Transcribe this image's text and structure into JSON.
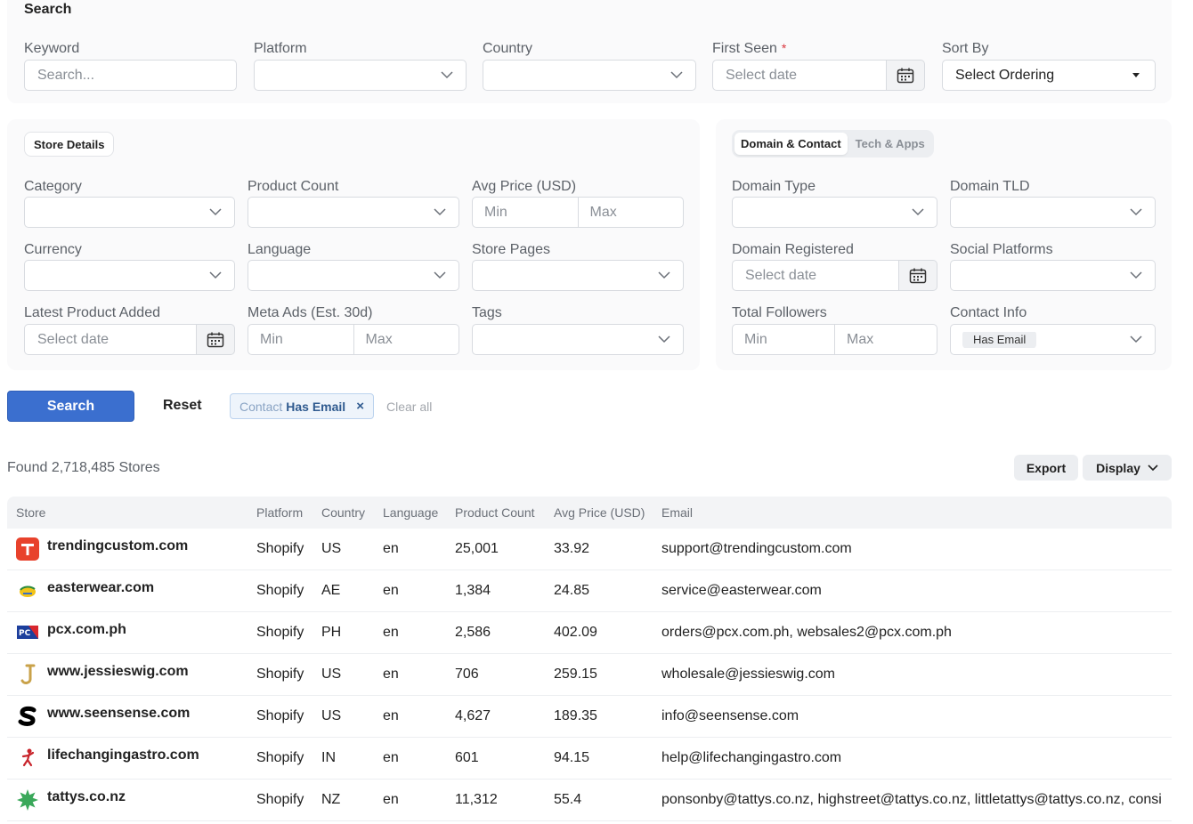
{
  "search_panel": {
    "title": "Search",
    "keyword": {
      "label": "Keyword",
      "placeholder": "Search..."
    },
    "platform": {
      "label": "Platform",
      "value": ""
    },
    "country": {
      "label": "Country",
      "value": ""
    },
    "first_seen": {
      "label": "First Seen",
      "required_mark": "*",
      "placeholder": "Select date"
    },
    "sort_by": {
      "label": "Sort By",
      "value": "Select Ordering"
    }
  },
  "store_details": {
    "tab_label": "Store Details",
    "category": {
      "label": "Category"
    },
    "product_count": {
      "label": "Product Count"
    },
    "avg_price": {
      "label": "Avg Price (USD)",
      "min": "Min",
      "max": "Max"
    },
    "currency": {
      "label": "Currency"
    },
    "language": {
      "label": "Language"
    },
    "store_pages": {
      "label": "Store Pages"
    },
    "latest_product_added": {
      "label": "Latest Product Added",
      "placeholder": "Select date"
    },
    "meta_ads": {
      "label": "Meta Ads (Est. 30d)",
      "min": "Min",
      "max": "Max"
    },
    "tags": {
      "label": "Tags"
    }
  },
  "domain_contact": {
    "tabs": [
      "Domain & Contact",
      "Tech & Apps"
    ],
    "domain_type": {
      "label": "Domain Type"
    },
    "domain_tld": {
      "label": "Domain TLD"
    },
    "domain_registered": {
      "label": "Domain Registered",
      "placeholder": "Select date"
    },
    "social_platforms": {
      "label": "Social Platforms"
    },
    "total_followers": {
      "label": "Total Followers",
      "min": "Min",
      "max": "Max"
    },
    "contact_info": {
      "label": "Contact Info",
      "selected": "Has Email"
    }
  },
  "actions": {
    "search_label": "Search",
    "reset_label": "Reset",
    "active_filter": {
      "key": "Contact",
      "value": "Has Email",
      "remove": "×"
    },
    "clear_all": "Clear all"
  },
  "results": {
    "found_text": "Found 2,718,485 Stores",
    "export_label": "Export",
    "display_label": "Display"
  },
  "table": {
    "columns": [
      "Store",
      "Platform",
      "Country",
      "Language",
      "Product Count",
      "Avg Price (USD)",
      "Email"
    ],
    "rows": [
      {
        "logo": "t-logo-icon",
        "store": "trendingcustom.com",
        "platform": "Shopify",
        "country": "US",
        "language": "en",
        "product_count": "25,001",
        "avg_price": "33.92",
        "email": "support@trendingcustom.com"
      },
      {
        "logo": "e-logo-icon",
        "store": "easterwear.com",
        "platform": "Shopify",
        "country": "AE",
        "language": "en",
        "product_count": "1,384",
        "avg_price": "24.85",
        "email": "service@easterwear.com"
      },
      {
        "logo": "pc-logo-icon",
        "store": "pcx.com.ph",
        "platform": "Shopify",
        "country": "PH",
        "language": "en",
        "product_count": "2,586",
        "avg_price": "402.09",
        "email": "orders@pcx.com.ph, websales2@pcx.com.ph"
      },
      {
        "logo": "j-logo-icon",
        "store": "www.jessieswig.com",
        "platform": "Shopify",
        "country": "US",
        "language": "en",
        "product_count": "706",
        "avg_price": "259.15",
        "email": "wholesale@jessieswig.com"
      },
      {
        "logo": "s-logo-icon",
        "store": "www.seensense.com",
        "platform": "Shopify",
        "country": "US",
        "language": "en",
        "product_count": "4,627",
        "avg_price": "189.35",
        "email": "info@seensense.com"
      },
      {
        "logo": "figure-logo-icon",
        "store": "lifechangingastro.com",
        "platform": "Shopify",
        "country": "IN",
        "language": "en",
        "product_count": "601",
        "avg_price": "94.15",
        "email": "help@lifechangingastro.com"
      },
      {
        "logo": "star-logo-icon",
        "store": "tattys.co.nz",
        "platform": "Shopify",
        "country": "NZ",
        "language": "en",
        "product_count": "11,312",
        "avg_price": "55.4",
        "email": "ponsonby@tattys.co.nz, highstreet@tattys.co.nz, littletattys@tattys.co.nz, consi"
      }
    ]
  }
}
